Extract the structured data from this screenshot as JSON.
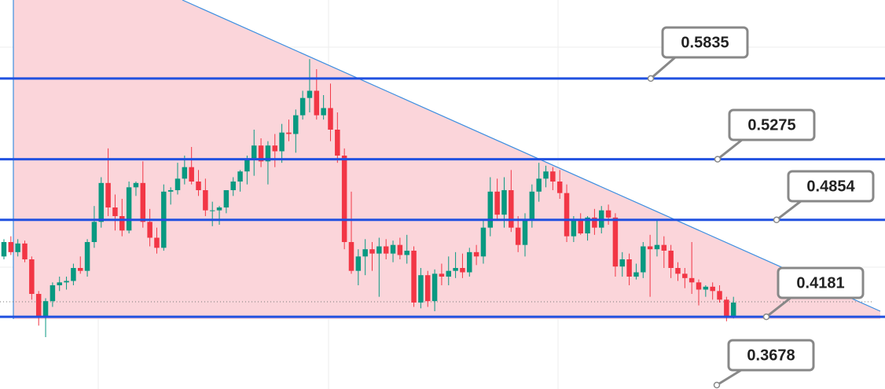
{
  "chart_data": {
    "type": "candlestick",
    "ylim": [
      0.368,
      0.638
    ],
    "up_color": "#089981",
    "down_color": "#f23645",
    "level_color": "#2151e0",
    "levels": [
      0.5835,
      0.5275,
      0.4854,
      0.4181,
      0.3678
    ],
    "candles": [
      [
        0.46,
        0.472,
        0.458,
        0.47
      ],
      [
        0.47,
        0.474,
        0.461,
        0.463
      ],
      [
        0.463,
        0.472,
        0.46,
        0.469
      ],
      [
        0.469,
        0.471,
        0.456,
        0.458
      ],
      [
        0.458,
        0.46,
        0.43,
        0.434
      ],
      [
        0.434,
        0.436,
        0.412,
        0.418
      ],
      [
        0.418,
        0.431,
        0.404,
        0.429
      ],
      [
        0.429,
        0.442,
        0.425,
        0.44
      ],
      [
        0.44,
        0.446,
        0.436,
        0.442
      ],
      [
        0.442,
        0.446,
        0.437,
        0.443
      ],
      [
        0.443,
        0.455,
        0.44,
        0.452
      ],
      [
        0.452,
        0.46,
        0.448,
        0.45
      ],
      [
        0.45,
        0.472,
        0.446,
        0.47
      ],
      [
        0.47,
        0.495,
        0.466,
        0.484
      ],
      [
        0.484,
        0.515,
        0.48,
        0.511
      ],
      [
        0.511,
        0.535,
        0.488,
        0.494
      ],
      [
        0.494,
        0.503,
        0.478,
        0.488
      ],
      [
        0.488,
        0.5,
        0.474,
        0.478
      ],
      [
        0.478,
        0.512,
        0.476,
        0.508
      ],
      [
        0.508,
        0.512,
        0.502,
        0.511
      ],
      [
        0.511,
        0.526,
        0.48,
        0.484
      ],
      [
        0.484,
        0.493,
        0.467,
        0.473
      ],
      [
        0.473,
        0.48,
        0.462,
        0.466
      ],
      [
        0.466,
        0.51,
        0.464,
        0.505
      ],
      [
        0.505,
        0.508,
        0.496,
        0.506
      ],
      [
        0.506,
        0.525,
        0.503,
        0.514
      ],
      [
        0.514,
        0.53,
        0.51,
        0.522
      ],
      [
        0.522,
        0.536,
        0.51,
        0.512
      ],
      [
        0.512,
        0.52,
        0.502,
        0.506
      ],
      [
        0.506,
        0.514,
        0.488,
        0.492
      ],
      [
        0.492,
        0.498,
        0.481,
        0.492
      ],
      [
        0.492,
        0.495,
        0.482,
        0.494
      ],
      [
        0.494,
        0.506,
        0.49,
        0.506
      ],
      [
        0.506,
        0.515,
        0.502,
        0.512
      ],
      [
        0.512,
        0.52,
        0.505,
        0.519
      ],
      [
        0.519,
        0.53,
        0.51,
        0.527
      ],
      [
        0.527,
        0.548,
        0.516,
        0.537
      ],
      [
        0.537,
        0.542,
        0.522,
        0.526
      ],
      [
        0.526,
        0.54,
        0.51,
        0.537
      ],
      [
        0.537,
        0.545,
        0.522,
        0.533
      ],
      [
        0.533,
        0.552,
        0.525,
        0.546
      ],
      [
        0.546,
        0.555,
        0.54,
        0.545
      ],
      [
        0.545,
        0.562,
        0.532,
        0.558
      ],
      [
        0.558,
        0.575,
        0.555,
        0.57
      ],
      [
        0.57,
        0.597,
        0.56,
        0.575
      ],
      [
        0.575,
        0.59,
        0.555,
        0.558
      ],
      [
        0.558,
        0.572,
        0.555,
        0.563
      ],
      [
        0.563,
        0.58,
        0.54,
        0.548
      ],
      [
        0.548,
        0.56,
        0.525,
        0.53
      ],
      [
        0.53,
        0.535,
        0.465,
        0.47
      ],
      [
        0.47,
        0.505,
        0.448,
        0.45
      ],
      [
        0.45,
        0.465,
        0.44,
        0.46
      ],
      [
        0.46,
        0.472,
        0.447,
        0.465
      ],
      [
        0.465,
        0.47,
        0.45,
        0.462
      ],
      [
        0.462,
        0.473,
        0.432,
        0.467
      ],
      [
        0.467,
        0.472,
        0.458,
        0.462
      ],
      [
        0.462,
        0.471,
        0.456,
        0.468
      ],
      [
        0.468,
        0.473,
        0.458,
        0.461
      ],
      [
        0.461,
        0.475,
        0.455,
        0.464
      ],
      [
        0.464,
        0.467,
        0.425,
        0.428
      ],
      [
        0.428,
        0.452,
        0.424,
        0.447
      ],
      [
        0.447,
        0.45,
        0.425,
        0.429
      ],
      [
        0.429,
        0.451,
        0.422,
        0.448
      ],
      [
        0.448,
        0.455,
        0.44,
        0.446
      ],
      [
        0.446,
        0.46,
        0.44,
        0.45
      ],
      [
        0.45,
        0.463,
        0.445,
        0.452
      ],
      [
        0.452,
        0.462,
        0.445,
        0.449
      ],
      [
        0.449,
        0.466,
        0.446,
        0.463
      ],
      [
        0.463,
        0.468,
        0.454,
        0.46
      ],
      [
        0.46,
        0.486,
        0.455,
        0.48
      ],
      [
        0.48,
        0.515,
        0.474,
        0.505
      ],
      [
        0.505,
        0.514,
        0.485,
        0.489
      ],
      [
        0.489,
        0.515,
        0.48,
        0.506
      ],
      [
        0.506,
        0.52,
        0.477,
        0.48
      ],
      [
        0.48,
        0.488,
        0.463,
        0.468
      ],
      [
        0.468,
        0.49,
        0.46,
        0.486
      ],
      [
        0.486,
        0.51,
        0.48,
        0.505
      ],
      [
        0.505,
        0.525,
        0.498,
        0.514
      ],
      [
        0.514,
        0.523,
        0.508,
        0.519
      ],
      [
        0.519,
        0.522,
        0.506,
        0.512
      ],
      [
        0.512,
        0.52,
        0.5,
        0.504
      ],
      [
        0.504,
        0.51,
        0.47,
        0.474
      ],
      [
        0.474,
        0.488,
        0.47,
        0.486
      ],
      [
        0.486,
        0.49,
        0.475,
        0.476
      ],
      [
        0.476,
        0.488,
        0.471,
        0.487
      ],
      [
        0.487,
        0.493,
        0.475,
        0.48
      ],
      [
        0.48,
        0.495,
        0.476,
        0.492
      ],
      [
        0.492,
        0.496,
        0.482,
        0.487
      ],
      [
        0.487,
        0.49,
        0.446,
        0.453
      ],
      [
        0.453,
        0.463,
        0.446,
        0.458
      ],
      [
        0.458,
        0.462,
        0.44,
        0.446
      ],
      [
        0.446,
        0.455,
        0.444,
        0.449
      ],
      [
        0.449,
        0.47,
        0.445,
        0.467
      ],
      [
        0.467,
        0.475,
        0.432,
        0.465
      ],
      [
        0.465,
        0.486,
        0.46,
        0.468
      ],
      [
        0.468,
        0.474,
        0.452,
        0.464
      ],
      [
        0.464,
        0.468,
        0.445,
        0.452
      ],
      [
        0.452,
        0.456,
        0.443,
        0.448
      ],
      [
        0.448,
        0.452,
        0.438,
        0.445
      ],
      [
        0.445,
        0.47,
        0.434,
        0.442
      ],
      [
        0.442,
        0.444,
        0.426,
        0.437
      ],
      [
        0.437,
        0.44,
        0.432,
        0.439
      ],
      [
        0.439,
        0.442,
        0.43,
        0.436
      ],
      [
        0.436,
        0.44,
        0.428,
        0.43
      ],
      [
        0.43,
        0.432,
        0.415,
        0.418
      ],
      [
        0.418,
        0.432,
        0.417,
        0.428
      ]
    ]
  }
}
